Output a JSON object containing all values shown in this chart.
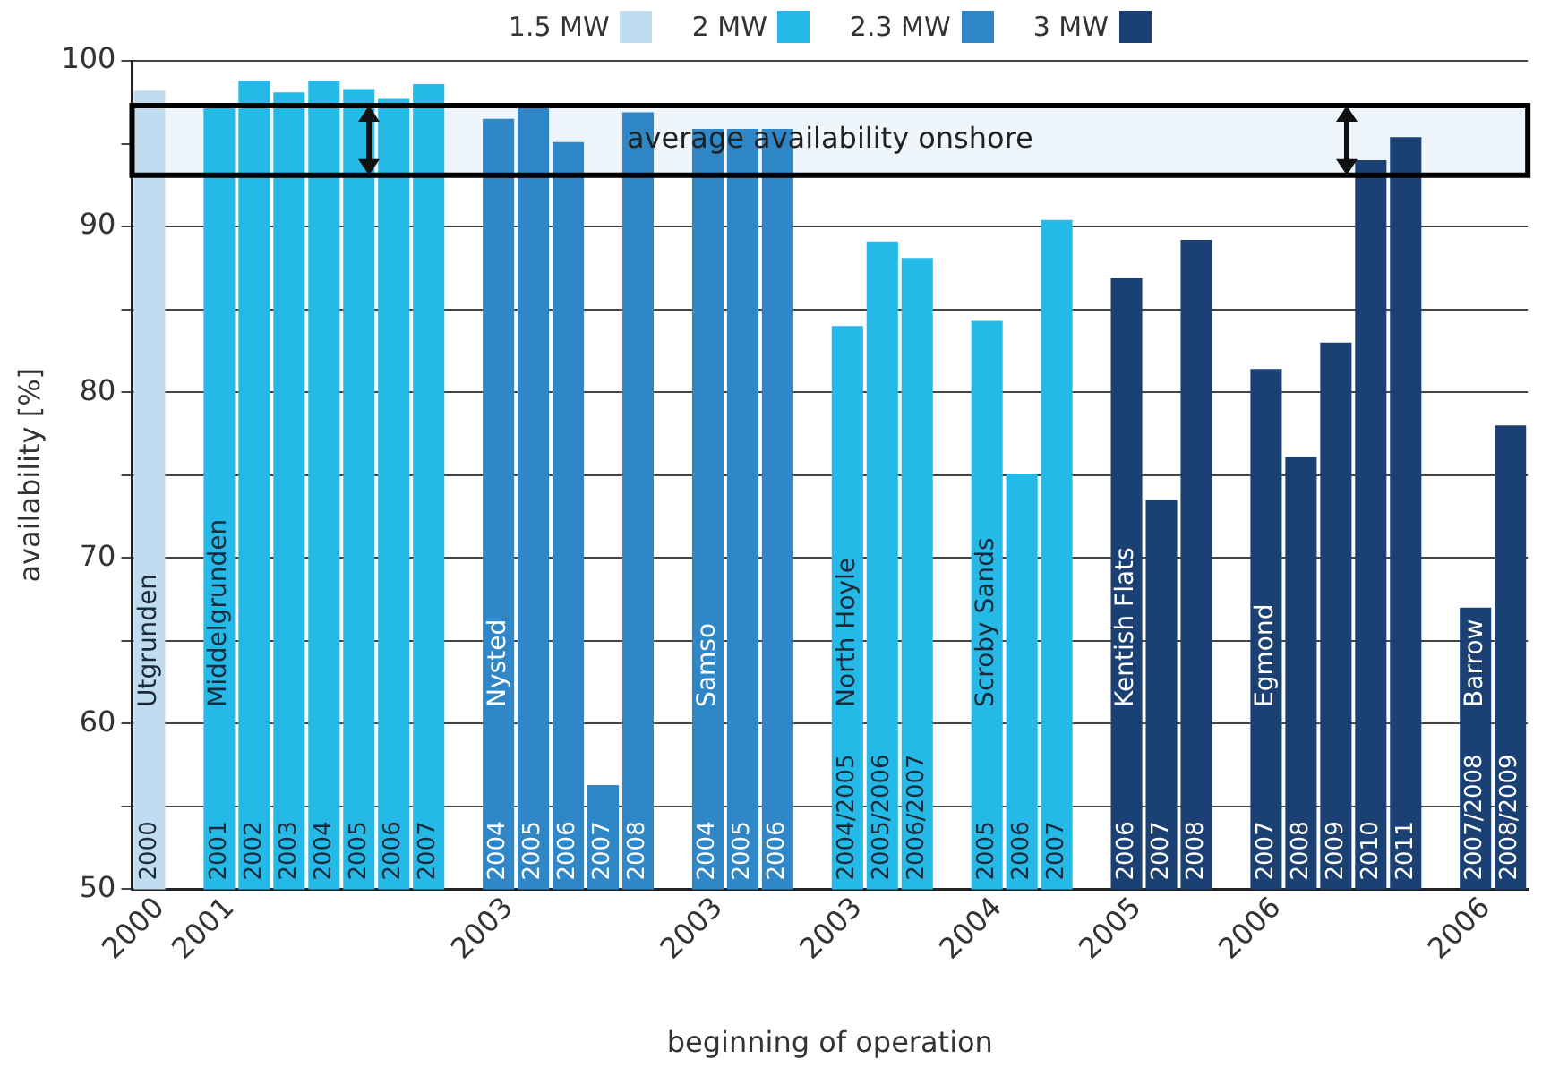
{
  "chart_data": {
    "type": "bar",
    "xlabel": "beginning of operation",
    "ylabel": "availability [%]",
    "categories": [
      "2000",
      null,
      "2001",
      "2002",
      "2003",
      "2004",
      "2005",
      "2006",
      "2007",
      null,
      "2004",
      "2005",
      "2006",
      "2007",
      "2008",
      null,
      "2004",
      "2005",
      "2006",
      null,
      "2004/2005",
      "2005/2006",
      "2006/2007",
      null,
      "2005",
      "2006",
      "2007",
      null,
      "2006",
      "2007",
      "2008",
      null,
      "2007",
      "2008",
      "2009",
      "2010",
      "2011",
      null,
      "2007/2008",
      "2008/2009"
    ],
    "series": [
      {
        "name": "1.5 MW",
        "color": "#c0dcf0",
        "values": [
          98.2,
          null,
          null,
          null,
          null,
          null,
          null,
          null,
          null,
          null,
          null,
          null,
          null,
          null,
          null,
          null,
          null,
          null,
          null,
          null,
          null,
          null,
          null,
          null,
          null,
          null,
          null,
          null,
          null,
          null,
          null,
          null,
          null,
          null,
          null,
          null,
          null,
          null,
          null,
          null
        ]
      },
      {
        "name": "2 MW",
        "color": "#25b9e8",
        "values": [
          null,
          null,
          97.3,
          98.8,
          98.1,
          98.8,
          98.3,
          97.7,
          98.6,
          null,
          null,
          null,
          null,
          null,
          null,
          null,
          null,
          null,
          null,
          null,
          84.0,
          89.1,
          88.1,
          null,
          84.3,
          75.1,
          90.4,
          null,
          null,
          null,
          null,
          null,
          null,
          null,
          null,
          null,
          null,
          null,
          null,
          null
        ]
      },
      {
        "name": "2.3 MW",
        "color": "#2f87c8",
        "values": [
          null,
          null,
          null,
          null,
          null,
          null,
          null,
          null,
          null,
          null,
          96.5,
          97.2,
          95.1,
          56.3,
          96.9,
          null,
          95.9,
          95.9,
          95.9,
          null,
          null,
          null,
          null,
          null,
          null,
          null,
          null,
          null,
          null,
          null,
          null,
          null,
          null,
          null,
          null,
          null,
          null,
          null,
          null,
          null
        ]
      },
      {
        "name": "3 MW",
        "color": "#1b4174",
        "values": [
          null,
          null,
          null,
          null,
          null,
          null,
          null,
          null,
          null,
          null,
          null,
          null,
          null,
          null,
          null,
          null,
          null,
          null,
          null,
          null,
          null,
          null,
          null,
          null,
          null,
          null,
          null,
          null,
          86.9,
          73.5,
          89.2,
          null,
          81.4,
          76.1,
          83.0,
          94.0,
          95.4,
          null,
          67.0,
          78.0
        ]
      }
    ],
    "ylim": [
      50,
      100
    ],
    "yticks": [
      50,
      {
        "value": 55,
        "label": null
      },
      60,
      {
        "value": 65,
        "label": null
      },
      70,
      {
        "value": 75,
        "label": null
      },
      80,
      {
        "value": 85,
        "label": null
      },
      90,
      {
        "value": 95,
        "label": null
      },
      100
    ],
    "grid": "y",
    "legend": "top",
    "bands": [
      {
        "axis": "y",
        "from": 93.1,
        "to": 97.3,
        "label": "average availability onshore"
      }
    ],
    "annotations": [
      "2000",
      "Utgrunden",
      "2001",
      "Middelgrunden",
      "2003",
      "Nysted",
      "2003",
      "Samso",
      "2003",
      "North Hoyle",
      "2004",
      "Scroby Sands",
      "2005",
      "Kentish Flats",
      "2006",
      "Egmond",
      "2006",
      "Barrow"
    ]
  }
}
